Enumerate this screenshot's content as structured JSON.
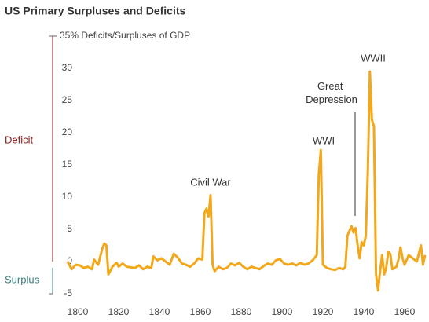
{
  "chart_data": {
    "type": "line",
    "title": "US Primary Surpluses and Deficits",
    "deficit_label": "Deficit",
    "surplus_label": "Surplus",
    "annotations": [
      "Civil War",
      "WWI",
      "Great Depression",
      "WWII"
    ],
    "xlim": [
      1795,
      1970
    ],
    "xticks": [
      1800,
      1820,
      1840,
      1860,
      1880,
      1900,
      1920,
      1940,
      1960
    ],
    "ylim": [
      -5,
      35
    ],
    "yticks": [
      -5,
      0,
      5,
      10,
      15,
      20,
      25,
      30,
      {
        "value": 35,
        "label": "35% Deficits/Surpluses of GDP"
      }
    ],
    "grid": false,
    "series": [
      {
        "name": "Deficits/Surpluses of GDP",
        "color": "#f2a81d",
        "x": [
          1795,
          1797,
          1799,
          1801,
          1803,
          1805,
          1807,
          1808,
          1810,
          1812,
          1813,
          1814,
          1815,
          1817,
          1819,
          1820,
          1822,
          1824,
          1826,
          1828,
          1830,
          1832,
          1834,
          1836,
          1837,
          1839,
          1841,
          1843,
          1845,
          1847,
          1849,
          1851,
          1853,
          1855,
          1857,
          1859,
          1861,
          1862,
          1863,
          1864,
          1865,
          1866,
          1867,
          1869,
          1871,
          1873,
          1875,
          1877,
          1879,
          1881,
          1883,
          1885,
          1887,
          1889,
          1891,
          1893,
          1895,
          1897,
          1899,
          1901,
          1903,
          1905,
          1907,
          1909,
          1911,
          1913,
          1915,
          1917,
          1918,
          1919,
          1920,
          1922,
          1924,
          1926,
          1928,
          1930,
          1931,
          1932,
          1934,
          1935,
          1936,
          1937,
          1938,
          1939,
          1940,
          1941,
          1942,
          1943,
          1944,
          1945,
          1946,
          1947,
          1948,
          1949,
          1950,
          1951,
          1952,
          1953,
          1954,
          1956,
          1957,
          1958,
          1959,
          1960,
          1962,
          1964,
          1966,
          1968,
          1969,
          1970
        ],
        "values": [
          0,
          -1.2,
          -0.5,
          -0.6,
          -1,
          -0.8,
          -1.2,
          0.3,
          -0.5,
          2,
          2.8,
          2.5,
          -2,
          -0.8,
          -0.2,
          -0.8,
          -0.3,
          -0.8,
          -0.9,
          -1,
          -0.6,
          -1.2,
          -0.8,
          -1,
          0.8,
          0.2,
          0.5,
          0,
          -0.5,
          1.2,
          0.6,
          -0.3,
          -0.5,
          -0.8,
          -0.3,
          0.5,
          0.3,
          7.5,
          8.2,
          7,
          10.3,
          -0.5,
          -1.5,
          -0.8,
          -1.2,
          -1,
          -0.3,
          -0.6,
          -0.2,
          -0.8,
          -1.2,
          -0.8,
          -1,
          -1.2,
          -0.7,
          -0.3,
          -0.5,
          0.2,
          0.4,
          -0.3,
          -0.5,
          -0.3,
          -0.6,
          -0.2,
          -0.5,
          -0.3,
          0.2,
          1,
          13.5,
          17.3,
          -0.5,
          -1,
          -1.2,
          -1.3,
          -1,
          -1.2,
          -0.8,
          4,
          5.5,
          4.5,
          5.2,
          2.5,
          0.5,
          3,
          2.5,
          4,
          14,
          29.5,
          22,
          21,
          -2,
          -4.5,
          -1.5,
          1,
          -2,
          -1,
          1.5,
          1.2,
          -1.2,
          -0.8,
          0.3,
          2.2,
          0.5,
          -0.5,
          1,
          0.5,
          0,
          2.5,
          -0.5,
          1
        ]
      }
    ]
  }
}
